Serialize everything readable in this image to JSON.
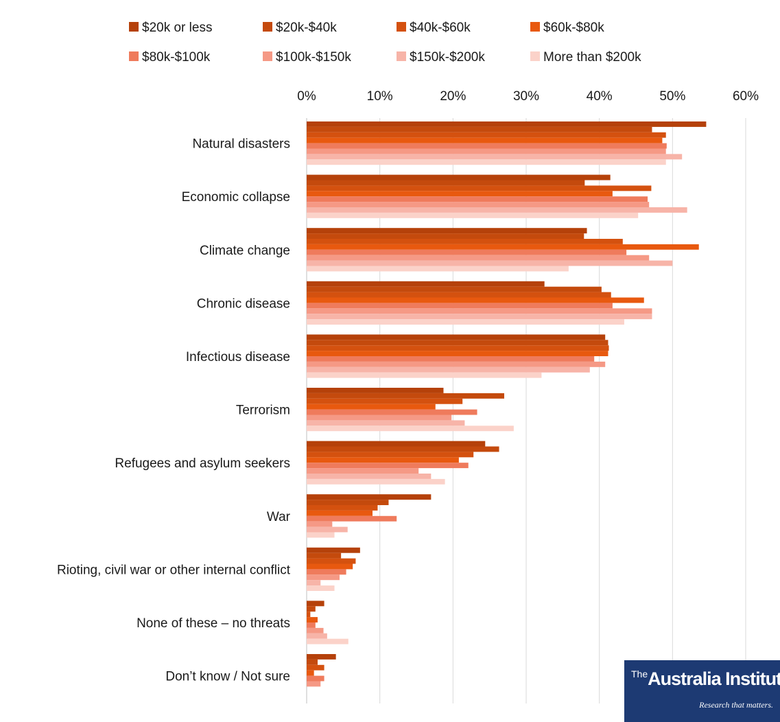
{
  "chart_data": {
    "type": "bar",
    "orientation": "horizontal",
    "title": "",
    "xlabel": "",
    "ylabel": "",
    "xlim": [
      0,
      60
    ],
    "x_ticks": [
      "0%",
      "10%",
      "20%",
      "30%",
      "40%",
      "50%",
      "60%"
    ],
    "grid": true,
    "legend_position": "top",
    "categories": [
      "Natural disasters",
      "Economic collapse",
      "Climate change",
      "Chronic disease",
      "Infectious disease",
      "Terrorism",
      "Refugees and asylum seekers",
      "War",
      "Rioting, civil war or other internal conflict",
      "None of these – no threats",
      "Don’t know / Not sure"
    ],
    "series": [
      {
        "name": "$20k or less",
        "color": "#b5410a",
        "values": [
          54.6,
          41.5,
          38.3,
          32.5,
          40.8,
          18.7,
          24.4,
          17.0,
          7.3,
          2.4,
          4.0
        ]
      },
      {
        "name": "$20k-$40k",
        "color": "#c44a0d",
        "values": [
          47.2,
          38.0,
          37.9,
          40.3,
          41.2,
          27.0,
          26.3,
          11.2,
          4.7,
          1.2,
          1.5
        ]
      },
      {
        "name": "$40k-$60k",
        "color": "#d4510f",
        "values": [
          49.1,
          47.1,
          43.2,
          41.6,
          41.3,
          21.3,
          22.8,
          9.7,
          6.7,
          0.5,
          2.4
        ]
      },
      {
        "name": "$60k-$80k",
        "color": "#e8590f",
        "values": [
          48.6,
          41.8,
          53.6,
          46.1,
          41.2,
          17.6,
          20.8,
          9.0,
          6.3,
          1.5,
          1.0
        ]
      },
      {
        "name": "$80k-$100k",
        "color": "#ef7b5c",
        "values": [
          49.2,
          46.6,
          43.7,
          41.8,
          39.3,
          23.3,
          22.1,
          12.3,
          5.4,
          1.2,
          2.4
        ]
      },
      {
        "name": "$100k-$150k",
        "color": "#f59985",
        "values": [
          49.1,
          46.8,
          46.8,
          47.2,
          40.8,
          19.8,
          15.3,
          3.5,
          4.5,
          2.3,
          1.9
        ]
      },
      {
        "name": "$150k-$200k",
        "color": "#f7b4a8",
        "values": [
          51.3,
          52.0,
          50.0,
          47.2,
          38.7,
          21.6,
          17.0,
          5.6,
          1.9,
          2.8,
          0
        ]
      },
      {
        "name": "More than $200k",
        "color": "#fbd2c9",
        "values": [
          49.1,
          45.3,
          35.8,
          43.4,
          32.1,
          28.3,
          18.9,
          3.8,
          3.8,
          5.7,
          0
        ]
      }
    ]
  },
  "logo": {
    "the": "The",
    "name": "Australia Institute",
    "tagline": "Research that matters."
  }
}
